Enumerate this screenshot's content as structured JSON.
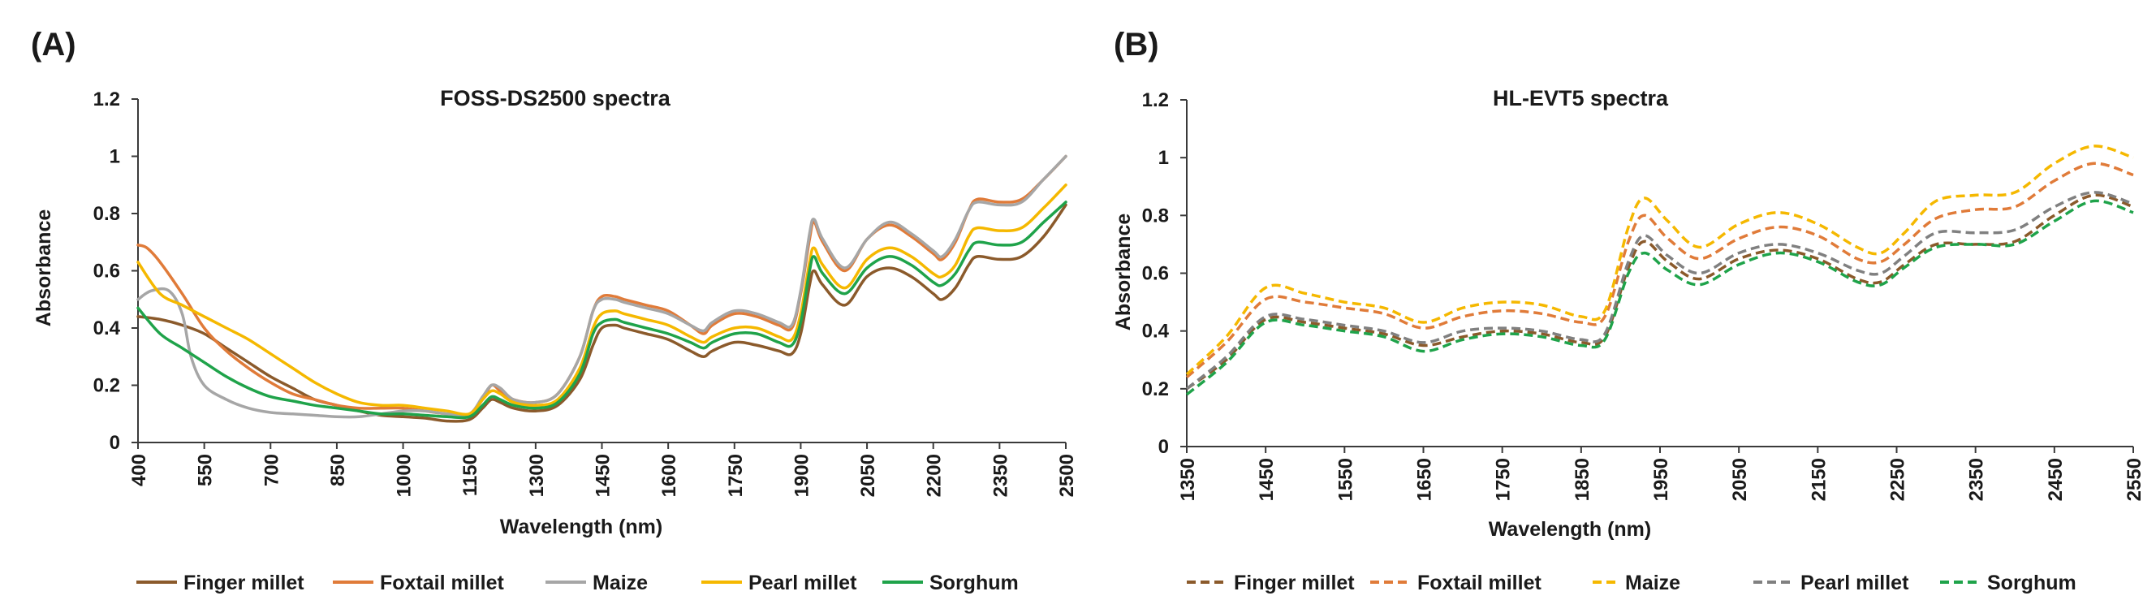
{
  "chart_data": [
    {
      "type": "line",
      "panel": "(A)",
      "title": "FOSS-DS2500 spectra",
      "xlabel": "Wavelength (nm)",
      "ylabel": "Absorbance",
      "xlim": [
        400,
        2500
      ],
      "ylim": [
        0,
        1.2
      ],
      "xticks": [
        400,
        550,
        700,
        850,
        1000,
        1150,
        1300,
        1450,
        1600,
        1750,
        1900,
        2050,
        2200,
        2350,
        2500
      ],
      "yticks": [
        0,
        0.2,
        0.4,
        0.6,
        0.8,
        1,
        1.2
      ],
      "ytick_labels": [
        "0",
        "0.2",
        "0.4",
        "0.6",
        "0.8",
        "1",
        "1.2"
      ],
      "grid": false,
      "legend_position": "bottom",
      "series": [
        {
          "name": "Finger millet",
          "color": "#8B5A2B",
          "dashed": false,
          "x": [
            400,
            450,
            500,
            550,
            600,
            650,
            700,
            750,
            800,
            850,
            900,
            950,
            1000,
            1050,
            1100,
            1150,
            1180,
            1200,
            1220,
            1250,
            1300,
            1350,
            1400,
            1430,
            1450,
            1480,
            1500,
            1550,
            1600,
            1650,
            1680,
            1700,
            1750,
            1800,
            1850,
            1880,
            1900,
            1920,
            1930,
            1950,
            2000,
            2050,
            2100,
            2150,
            2200,
            2220,
            2250,
            2280,
            2300,
            2350,
            2400,
            2450,
            2500
          ],
          "y": [
            0.44,
            0.43,
            0.41,
            0.38,
            0.33,
            0.28,
            0.23,
            0.19,
            0.15,
            0.13,
            0.11,
            0.095,
            0.09,
            0.085,
            0.075,
            0.08,
            0.12,
            0.15,
            0.14,
            0.12,
            0.11,
            0.13,
            0.22,
            0.34,
            0.4,
            0.41,
            0.4,
            0.38,
            0.36,
            0.32,
            0.3,
            0.32,
            0.35,
            0.34,
            0.32,
            0.31,
            0.38,
            0.55,
            0.6,
            0.55,
            0.48,
            0.58,
            0.61,
            0.58,
            0.52,
            0.5,
            0.54,
            0.62,
            0.65,
            0.64,
            0.65,
            0.72,
            0.83
          ]
        },
        {
          "name": "Foxtail millet",
          "color": "#E07B39",
          "dashed": false,
          "x": [
            400,
            420,
            450,
            500,
            550,
            600,
            650,
            700,
            750,
            800,
            850,
            900,
            950,
            1000,
            1050,
            1100,
            1150,
            1180,
            1200,
            1220,
            1250,
            1300,
            1350,
            1400,
            1430,
            1450,
            1480,
            1500,
            1550,
            1600,
            1650,
            1680,
            1700,
            1750,
            1800,
            1850,
            1880,
            1900,
            1920,
            1930,
            1950,
            2000,
            2050,
            2100,
            2150,
            2200,
            2220,
            2250,
            2280,
            2300,
            2350,
            2400,
            2450,
            2500
          ],
          "y": [
            0.69,
            0.68,
            0.63,
            0.52,
            0.4,
            0.32,
            0.26,
            0.21,
            0.17,
            0.15,
            0.13,
            0.12,
            0.12,
            0.12,
            0.11,
            0.1,
            0.1,
            0.15,
            0.2,
            0.18,
            0.15,
            0.14,
            0.17,
            0.3,
            0.46,
            0.51,
            0.51,
            0.5,
            0.48,
            0.46,
            0.41,
            0.38,
            0.41,
            0.45,
            0.44,
            0.41,
            0.4,
            0.52,
            0.71,
            0.77,
            0.7,
            0.6,
            0.71,
            0.76,
            0.72,
            0.66,
            0.64,
            0.7,
            0.81,
            0.85,
            0.84,
            0.85,
            0.92,
            1.0
          ]
        },
        {
          "name": "Maize",
          "color": "#A6A6A6",
          "dashed": false,
          "x": [
            400,
            430,
            470,
            500,
            520,
            550,
            600,
            650,
            700,
            750,
            800,
            850,
            900,
            950,
            1000,
            1050,
            1100,
            1150,
            1180,
            1200,
            1220,
            1250,
            1300,
            1350,
            1400,
            1430,
            1450,
            1480,
            1500,
            1550,
            1600,
            1650,
            1680,
            1700,
            1750,
            1800,
            1850,
            1880,
            1900,
            1920,
            1930,
            1950,
            2000,
            2050,
            2100,
            2150,
            2200,
            2220,
            2250,
            2280,
            2300,
            2350,
            2400,
            2450,
            2500
          ],
          "y": [
            0.5,
            0.53,
            0.53,
            0.45,
            0.3,
            0.2,
            0.15,
            0.12,
            0.105,
            0.1,
            0.095,
            0.09,
            0.09,
            0.1,
            0.11,
            0.11,
            0.1,
            0.1,
            0.16,
            0.2,
            0.19,
            0.15,
            0.14,
            0.17,
            0.3,
            0.46,
            0.5,
            0.5,
            0.49,
            0.47,
            0.45,
            0.41,
            0.39,
            0.42,
            0.46,
            0.45,
            0.42,
            0.41,
            0.53,
            0.73,
            0.78,
            0.71,
            0.61,
            0.71,
            0.77,
            0.73,
            0.67,
            0.65,
            0.71,
            0.81,
            0.84,
            0.83,
            0.84,
            0.92,
            1.0
          ]
        },
        {
          "name": "Pearl millet",
          "color": "#F5B800",
          "dashed": false,
          "x": [
            400,
            450,
            500,
            550,
            600,
            650,
            700,
            750,
            800,
            850,
            900,
            950,
            1000,
            1050,
            1100,
            1150,
            1180,
            1200,
            1220,
            1250,
            1300,
            1350,
            1400,
            1430,
            1450,
            1480,
            1500,
            1550,
            1600,
            1650,
            1680,
            1700,
            1750,
            1800,
            1850,
            1880,
            1900,
            1920,
            1930,
            1950,
            2000,
            2050,
            2100,
            2150,
            2200,
            2220,
            2250,
            2280,
            2300,
            2350,
            2400,
            2450,
            2500
          ],
          "y": [
            0.63,
            0.52,
            0.48,
            0.44,
            0.4,
            0.36,
            0.31,
            0.26,
            0.21,
            0.17,
            0.14,
            0.13,
            0.13,
            0.12,
            0.11,
            0.1,
            0.15,
            0.18,
            0.17,
            0.14,
            0.13,
            0.15,
            0.26,
            0.4,
            0.45,
            0.46,
            0.45,
            0.43,
            0.41,
            0.37,
            0.35,
            0.37,
            0.4,
            0.4,
            0.37,
            0.36,
            0.45,
            0.63,
            0.68,
            0.62,
            0.54,
            0.64,
            0.68,
            0.65,
            0.59,
            0.58,
            0.62,
            0.72,
            0.75,
            0.74,
            0.75,
            0.82,
            0.9
          ]
        },
        {
          "name": "Sorghum",
          "color": "#1FA34A",
          "dashed": false,
          "x": [
            400,
            450,
            500,
            550,
            600,
            650,
            700,
            750,
            800,
            850,
            900,
            950,
            1000,
            1050,
            1100,
            1150,
            1180,
            1200,
            1220,
            1250,
            1300,
            1350,
            1400,
            1430,
            1450,
            1480,
            1500,
            1550,
            1600,
            1650,
            1680,
            1700,
            1750,
            1800,
            1850,
            1880,
            1900,
            1920,
            1930,
            1950,
            2000,
            2050,
            2100,
            2150,
            2200,
            2220,
            2250,
            2280,
            2300,
            2350,
            2400,
            2450,
            2500
          ],
          "y": [
            0.47,
            0.38,
            0.33,
            0.28,
            0.23,
            0.19,
            0.16,
            0.145,
            0.13,
            0.12,
            0.11,
            0.1,
            0.1,
            0.095,
            0.09,
            0.09,
            0.13,
            0.16,
            0.15,
            0.13,
            0.12,
            0.14,
            0.24,
            0.38,
            0.42,
            0.43,
            0.42,
            0.4,
            0.38,
            0.35,
            0.33,
            0.35,
            0.38,
            0.38,
            0.35,
            0.34,
            0.42,
            0.6,
            0.65,
            0.59,
            0.52,
            0.61,
            0.65,
            0.62,
            0.56,
            0.55,
            0.59,
            0.67,
            0.7,
            0.69,
            0.7,
            0.77,
            0.84
          ]
        }
      ]
    },
    {
      "type": "line",
      "panel": "(B)",
      "title": "HL-EVT5 spectra",
      "xlabel": "Wavelength (nm)",
      "ylabel": "Absorbance",
      "xlim": [
        1350,
        2550
      ],
      "ylim": [
        0,
        1.2
      ],
      "xticks": [
        1350,
        1450,
        1550,
        1650,
        1750,
        1850,
        1950,
        2050,
        2150,
        2250,
        2350,
        2450,
        2550
      ],
      "yticks": [
        0,
        0.2,
        0.4,
        0.6,
        0.8,
        1,
        1.2
      ],
      "ytick_labels": [
        "0",
        "0.2",
        "0.4",
        "0.6",
        "0.8",
        "1",
        "1.2"
      ],
      "grid": false,
      "legend_position": "bottom",
      "series": [
        {
          "name": "Finger millet",
          "color": "#8B5A2B",
          "dashed": true,
          "x": [
            1350,
            1400,
            1450,
            1500,
            1550,
            1600,
            1650,
            1700,
            1750,
            1800,
            1850,
            1880,
            1910,
            1930,
            1960,
            2000,
            2050,
            2100,
            2150,
            2200,
            2230,
            2260,
            2300,
            2350,
            2400,
            2450,
            2500,
            2550
          ],
          "y": [
            0.2,
            0.3,
            0.44,
            0.43,
            0.41,
            0.39,
            0.35,
            0.38,
            0.4,
            0.39,
            0.36,
            0.38,
            0.62,
            0.71,
            0.64,
            0.58,
            0.65,
            0.68,
            0.65,
            0.58,
            0.57,
            0.63,
            0.7,
            0.7,
            0.71,
            0.8,
            0.87,
            0.83
          ]
        },
        {
          "name": "Foxtail millet",
          "color": "#E07B39",
          "dashed": true,
          "x": [
            1350,
            1400,
            1450,
            1500,
            1550,
            1600,
            1650,
            1700,
            1750,
            1800,
            1850,
            1880,
            1910,
            1930,
            1960,
            2000,
            2050,
            2100,
            2150,
            2200,
            2230,
            2260,
            2300,
            2350,
            2400,
            2450,
            2500,
            2550
          ],
          "y": [
            0.24,
            0.36,
            0.51,
            0.5,
            0.48,
            0.46,
            0.41,
            0.45,
            0.47,
            0.46,
            0.43,
            0.45,
            0.71,
            0.8,
            0.72,
            0.65,
            0.72,
            0.76,
            0.73,
            0.65,
            0.64,
            0.7,
            0.79,
            0.82,
            0.83,
            0.92,
            0.98,
            0.94
          ]
        },
        {
          "name": "Maize",
          "color": "#F5B800",
          "dashed": true,
          "x": [
            1350,
            1400,
            1450,
            1500,
            1550,
            1600,
            1650,
            1700,
            1750,
            1800,
            1850,
            1880,
            1910,
            1930,
            1960,
            2000,
            2050,
            2100,
            2150,
            2200,
            2230,
            2260,
            2300,
            2350,
            2400,
            2450,
            2500,
            2550
          ],
          "y": [
            0.25,
            0.38,
            0.55,
            0.53,
            0.5,
            0.48,
            0.43,
            0.48,
            0.5,
            0.49,
            0.45,
            0.47,
            0.76,
            0.86,
            0.78,
            0.69,
            0.77,
            0.81,
            0.77,
            0.69,
            0.67,
            0.74,
            0.85,
            0.87,
            0.88,
            0.98,
            1.04,
            1.0
          ]
        },
        {
          "name": "Pearl millet",
          "color": "#808080",
          "dashed": true,
          "x": [
            1350,
            1400,
            1450,
            1500,
            1550,
            1600,
            1650,
            1700,
            1750,
            1800,
            1850,
            1880,
            1910,
            1930,
            1960,
            2000,
            2050,
            2100,
            2150,
            2200,
            2230,
            2260,
            2300,
            2350,
            2400,
            2450,
            2500,
            2550
          ],
          "y": [
            0.2,
            0.31,
            0.45,
            0.44,
            0.42,
            0.4,
            0.36,
            0.4,
            0.41,
            0.4,
            0.37,
            0.39,
            0.64,
            0.73,
            0.66,
            0.6,
            0.67,
            0.7,
            0.67,
            0.61,
            0.6,
            0.66,
            0.74,
            0.74,
            0.75,
            0.83,
            0.88,
            0.84
          ]
        },
        {
          "name": "Sorghum",
          "color": "#1FA34A",
          "dashed": true,
          "x": [
            1350,
            1400,
            1450,
            1500,
            1550,
            1600,
            1650,
            1700,
            1750,
            1800,
            1850,
            1880,
            1910,
            1930,
            1960,
            2000,
            2050,
            2100,
            2150,
            2200,
            2230,
            2260,
            2300,
            2350,
            2400,
            2450,
            2500,
            2550
          ],
          "y": [
            0.18,
            0.29,
            0.43,
            0.42,
            0.4,
            0.38,
            0.33,
            0.37,
            0.39,
            0.38,
            0.35,
            0.37,
            0.6,
            0.67,
            0.61,
            0.56,
            0.63,
            0.67,
            0.64,
            0.57,
            0.56,
            0.62,
            0.69,
            0.7,
            0.7,
            0.78,
            0.85,
            0.81
          ]
        }
      ]
    }
  ]
}
